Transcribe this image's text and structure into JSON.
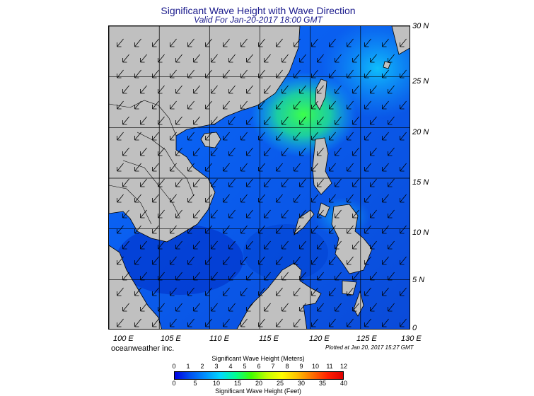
{
  "header": {
    "title": "Significant Wave Height with Wave Direction",
    "subtitle": "Valid For Jan-20-2017 18:00 GMT"
  },
  "map": {
    "latitudes": [
      "30 N",
      "25 N",
      "20 N",
      "15 N",
      "10 N",
      "5 N",
      "0"
    ],
    "longitudes": [
      "100 E",
      "105 E",
      "110 E",
      "115 E",
      "120 E",
      "125 E",
      "130 E"
    ],
    "lat_range": [
      0,
      30
    ],
    "lon_range": [
      100,
      130
    ],
    "grid": true,
    "land_color": "#c0c0c0",
    "arrow_direction": "toward southwest"
  },
  "footer": {
    "company": "oceanweather inc.",
    "plotted": "Plotted at Jan 20, 2017 15:27 GMT"
  },
  "legend": {
    "title_meters": "Significant Wave Height (Meters)",
    "title_feet": "Significant Wave Height (Feet)",
    "meters_ticks": [
      "0",
      "1",
      "2",
      "3",
      "4",
      "5",
      "6",
      "7",
      "8",
      "9",
      "10",
      "11",
      "12"
    ],
    "feet_ticks": [
      "0",
      "5",
      "10",
      "15",
      "20",
      "25",
      "30",
      "35",
      "40"
    ],
    "colors": [
      "#0000e0",
      "#0050f0",
      "#0090ff",
      "#00d8ff",
      "#00ff90",
      "#40ff00",
      "#c0ff00",
      "#ffff00",
      "#ffc000",
      "#ff7000",
      "#ff2000",
      "#e00000"
    ]
  }
}
